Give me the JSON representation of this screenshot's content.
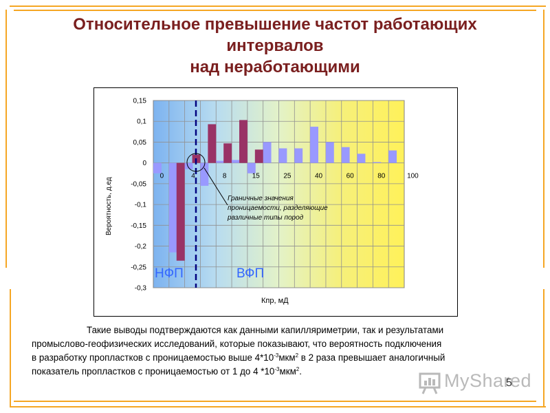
{
  "slide": {
    "title_lines": [
      "Относительное превышение  частот работающих",
      "интервалов",
      "над неработающими"
    ],
    "body_lines": [
      "Такие выводы подтверждаются как данными капилляриметрии, так и результатами",
      "промыслово-геофизических исследований, которые показывают, что вероятность подключения"
    ],
    "line3": {
      "pre": "в разработку пропластков с проницаемостью выше 4*10",
      "sup1": "-3",
      "mid1": "мкм",
      "sup2": "2",
      "post": " в 2 раза превышает аналогичный"
    },
    "line4": {
      "pre": "показатель пропластков с проницаемостью от 1 до 4 *10",
      "sup1": "-3",
      "mid1": "мкм",
      "sup2": "2",
      "post": "."
    },
    "page_number": "5",
    "logo_text": "MyShared"
  },
  "colors": {
    "accent_orange": "#f5a623",
    "title_red": "#7a1f1f",
    "bar_dark": "#993366",
    "bar_light": "#9999ff",
    "boundary_line": "#000080"
  },
  "chart_data": {
    "type": "bar",
    "xlabel": "Кпр, мД",
    "ylabel": "Вероятность, д.ед",
    "ylim": [
      -0.3,
      0.15
    ],
    "yticks": [
      "0,15",
      "0,1",
      "0,05",
      "0",
      "-0,05",
      "-0,1",
      "-0,15",
      "-0,2",
      "-0,25",
      "-0,3"
    ],
    "ytick_values": [
      0.15,
      0.1,
      0.05,
      0,
      -0.05,
      -0.1,
      -0.15,
      -0.2,
      -0.25,
      -0.3
    ],
    "category_labels": [
      "0",
      "4",
      "8",
      "15",
      "25",
      "40",
      "60",
      "80",
      "100"
    ],
    "label_every": 2,
    "grid": true,
    "series": [
      {
        "color": "#9999ff",
        "values": [
          -0.025,
          -0.215,
          -0.015,
          -0.055,
          0.005,
          0.007,
          -0.025,
          0.05,
          0.035,
          0.035,
          0.087,
          0.05,
          0.038,
          0.022,
          0.002,
          0.03
        ]
      },
      {
        "color": "#993366",
        "values": [
          0,
          -0.235,
          0.02,
          0.093,
          0.047,
          0.103,
          0.032,
          0,
          0,
          0,
          0,
          0,
          0,
          0,
          0,
          0
        ]
      }
    ],
    "annotations": {
      "boundary_text": [
        "Граничные значения",
        "проницаемости, разделяющие",
        "различные типы пород"
      ],
      "left_zone": "НФП",
      "right_zone": "ВФП"
    }
  }
}
